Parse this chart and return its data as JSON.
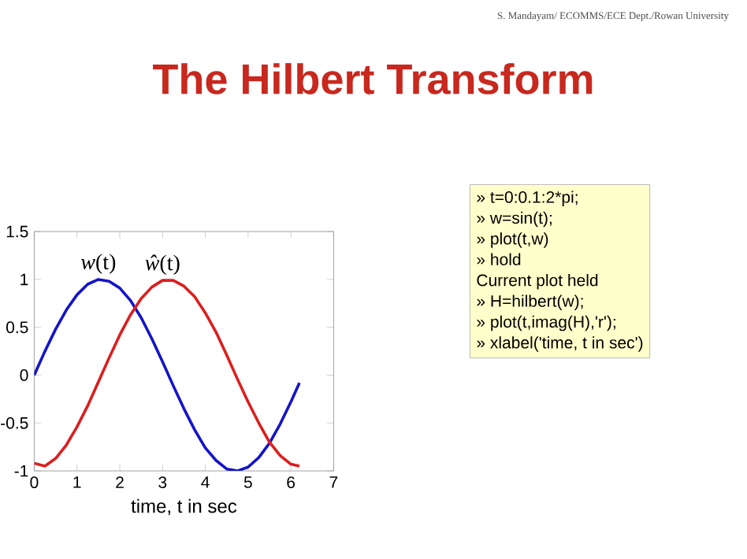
{
  "chart_data": {
    "type": "line",
    "title": "The Hilbert Transform",
    "xlabel": "time, t in sec",
    "x": [
      0,
      0.25,
      0.5,
      0.75,
      1,
      1.25,
      1.5,
      1.75,
      2,
      2.25,
      2.5,
      2.75,
      3,
      3.25,
      3.5,
      3.75,
      4,
      4.25,
      4.5,
      4.75,
      5,
      5.25,
      5.5,
      5.75,
      6,
      6.2
    ],
    "series": [
      {
        "name": "*w*(t)",
        "color": "#1414c8",
        "values": [
          0,
          0.25,
          0.48,
          0.68,
          0.84,
          0.95,
          1.0,
          0.98,
          0.91,
          0.78,
          0.6,
          0.38,
          0.14,
          -0.11,
          -0.35,
          -0.57,
          -0.76,
          -0.89,
          -0.98,
          -1.0,
          -0.96,
          -0.86,
          -0.71,
          -0.51,
          -0.28,
          -0.08
        ]
      },
      {
        "name": "*ŵ*(t)",
        "color": "#dc1e1e",
        "values": [
          -0.92,
          -0.95,
          -0.87,
          -0.73,
          -0.54,
          -0.32,
          -0.07,
          0.18,
          0.42,
          0.63,
          0.8,
          0.92,
          0.99,
          0.99,
          0.93,
          0.82,
          0.65,
          0.45,
          0.21,
          -0.04,
          -0.28,
          -0.5,
          -0.7,
          -0.84,
          -0.93,
          -0.95
        ]
      }
    ],
    "xlim": [
      0,
      7
    ],
    "ylim": [
      -1,
      1.5
    ],
    "xticks": [
      0,
      1,
      2,
      3,
      4,
      5,
      6,
      7
    ],
    "yticks": [
      -1,
      -0.5,
      0,
      0.5,
      1,
      1.5
    ],
    "annotations": [
      "S. Mandayam/ ECOMMS/ECE Dept./Rowan University",
      "» t=0:0.1:2*pi;",
      "» w=sin(t);",
      "» plot(t,w)",
      "» hold",
      "Current plot held",
      "» H=hilbert(w);",
      "» plot(t,imag(H),'r');",
      "» xlabel('time, t in sec')"
    ]
  }
}
